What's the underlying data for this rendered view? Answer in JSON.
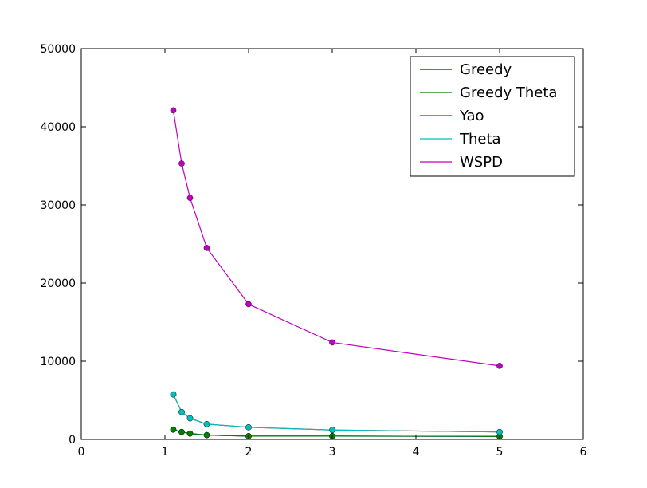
{
  "chart_data": {
    "type": "line",
    "title": "",
    "xlabel": "",
    "ylabel": "",
    "xlim": [
      0,
      6
    ],
    "ylim": [
      0,
      50000
    ],
    "xticks": [
      "0",
      "1",
      "2",
      "3",
      "4",
      "5",
      "6"
    ],
    "yticks": [
      "0",
      "10000",
      "20000",
      "30000",
      "40000",
      "50000"
    ],
    "grid": false,
    "legend_position": "top-right",
    "x": [
      1.1,
      1.2,
      1.3,
      1.5,
      2,
      3,
      5
    ],
    "series": [
      {
        "name": "Greedy",
        "color": "#0000ff",
        "values": [
          1250,
          950,
          750,
          550,
          420,
          420,
          380
        ]
      },
      {
        "name": "Greedy Theta",
        "color": "#008000",
        "values": [
          1250,
          950,
          750,
          550,
          420,
          420,
          380
        ]
      },
      {
        "name": "Yao",
        "color": "#ff0000",
        "values": [
          5750,
          3500,
          2700,
          1950,
          1550,
          1200,
          950
        ]
      },
      {
        "name": "Theta",
        "color": "#00bfbf",
        "values": [
          5750,
          3500,
          2700,
          1950,
          1550,
          1200,
          950
        ]
      },
      {
        "name": "WSPD",
        "color": "#bf00bf",
        "values": [
          42100,
          35300,
          30900,
          24500,
          17300,
          12400,
          9400
        ]
      }
    ]
  }
}
